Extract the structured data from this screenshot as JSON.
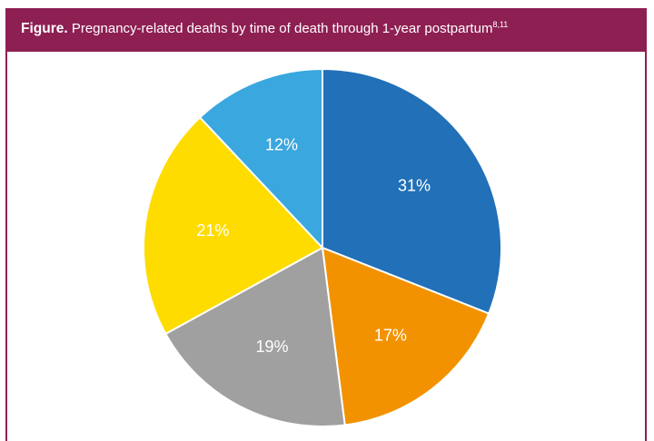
{
  "header": {
    "label": "Figure.",
    "title": " Pregnancy-related deaths by time of death through 1-year postpartum",
    "superscript": "8,11"
  },
  "chart_data": {
    "type": "pie",
    "title": "Pregnancy-related deaths by time of death through 1-year postpartum",
    "slices": [
      {
        "label": "31%",
        "value": 31,
        "color": "#2170b8"
      },
      {
        "label": "17%",
        "value": 17,
        "color": "#f29200"
      },
      {
        "label": "19%",
        "value": 19,
        "color": "#a0a0a0"
      },
      {
        "label": "21%",
        "value": 21,
        "color": "#fedc00"
      },
      {
        "label": "12%",
        "value": 12,
        "color": "#3aa7df"
      }
    ],
    "legend": false
  },
  "colors": {
    "header_background": "#8e1f52",
    "header_text": "#ffffff",
    "slice_label_text": "#ffffff"
  }
}
